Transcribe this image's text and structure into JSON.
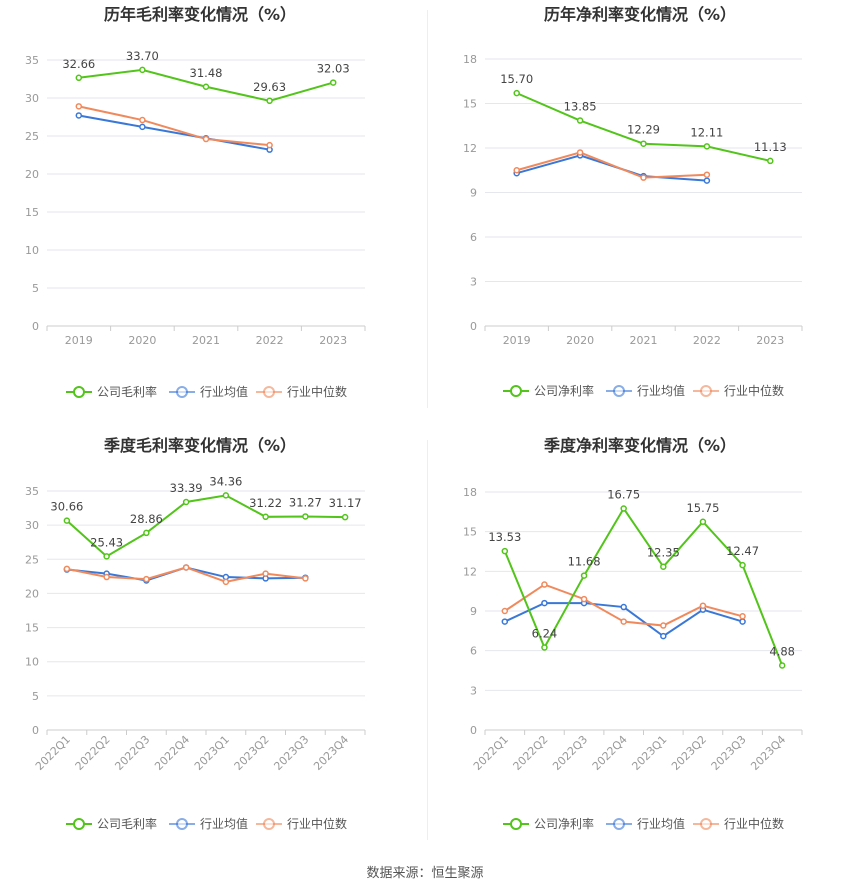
{
  "source": "数据来源：恒生聚源",
  "colors": {
    "company": "#52c41a",
    "avg": "#3a78d8",
    "median": "#f08a5d",
    "grid": "#e6e6ee",
    "axis": "#999999",
    "title": "#333333"
  },
  "chart_data": [
    {
      "type": "line",
      "title": "历年毛利率变化情况（%）",
      "categories": [
        "2019",
        "2020",
        "2021",
        "2022",
        "2023"
      ],
      "ylim": [
        0,
        35
      ],
      "yticks": [
        0,
        5,
        10,
        15,
        20,
        25,
        30,
        35
      ],
      "series": [
        {
          "name": "公司毛利率",
          "values": [
            32.66,
            33.7,
            31.48,
            29.63,
            32.03
          ],
          "labels": [
            "32.66",
            "33.70",
            "31.48",
            "29.63",
            "32.03"
          ]
        },
        {
          "name": "行业均值",
          "values": [
            27.7,
            26.2,
            24.7,
            23.2,
            null
          ]
        },
        {
          "name": "行业中位数",
          "values": [
            28.9,
            27.1,
            24.6,
            23.8,
            null
          ]
        }
      ]
    },
    {
      "type": "line",
      "title": "历年净利率变化情况（%）",
      "categories": [
        "2019",
        "2020",
        "2021",
        "2022",
        "2023"
      ],
      "ylim": [
        0,
        18
      ],
      "yticks": [
        0,
        3,
        6,
        9,
        12,
        15,
        18
      ],
      "series": [
        {
          "name": "公司净利率",
          "values": [
            15.7,
            13.85,
            12.29,
            12.11,
            11.13
          ],
          "labels": [
            "15.70",
            "13.85",
            "12.29",
            "12.11",
            "11.13"
          ]
        },
        {
          "name": "行业均值",
          "values": [
            10.3,
            11.5,
            10.1,
            9.8,
            null
          ]
        },
        {
          "name": "行业中位数",
          "values": [
            10.5,
            11.7,
            10.0,
            10.2,
            null
          ]
        }
      ]
    },
    {
      "type": "line",
      "title": "季度毛利率变化情况（%）",
      "categories": [
        "2022Q1",
        "2022Q2",
        "2022Q3",
        "2022Q4",
        "2023Q1",
        "2023Q2",
        "2023Q3",
        "2023Q4"
      ],
      "ylim": [
        0,
        35
      ],
      "yticks": [
        0,
        5,
        10,
        15,
        20,
        25,
        30,
        35
      ],
      "series": [
        {
          "name": "公司毛利率",
          "values": [
            30.66,
            25.43,
            28.86,
            33.39,
            34.36,
            31.22,
            31.27,
            31.17
          ],
          "labels": [
            "30.66",
            "25.43",
            "28.86",
            "33.39",
            "34.36",
            "31.22",
            "31.27",
            "31.17"
          ]
        },
        {
          "name": "行业均值",
          "values": [
            23.5,
            22.9,
            21.9,
            23.8,
            22.4,
            22.2,
            22.3,
            null
          ]
        },
        {
          "name": "行业中位数",
          "values": [
            23.6,
            22.4,
            22.1,
            23.8,
            21.7,
            22.9,
            22.2,
            null
          ]
        }
      ]
    },
    {
      "type": "line",
      "title": "季度净利率变化情况（%）",
      "categories": [
        "2022Q1",
        "2022Q2",
        "2022Q3",
        "2022Q4",
        "2023Q1",
        "2023Q2",
        "2023Q3",
        "2023Q4"
      ],
      "ylim": [
        0,
        18
      ],
      "yticks": [
        0,
        3,
        6,
        9,
        12,
        15,
        18
      ],
      "series": [
        {
          "name": "公司净利率",
          "values": [
            13.53,
            6.24,
            11.68,
            16.75,
            12.35,
            15.75,
            12.47,
            4.88
          ],
          "labels": [
            "13.53",
            "6.24",
            "11.68",
            "16.75",
            "12.35",
            "15.75",
            "12.47",
            "4.88"
          ]
        },
        {
          "name": "行业均值",
          "values": [
            8.2,
            9.6,
            9.6,
            9.3,
            7.1,
            9.1,
            8.2,
            null
          ]
        },
        {
          "name": "行业中位数",
          "values": [
            9.0,
            11.0,
            9.9,
            8.2,
            7.9,
            9.4,
            8.6,
            null
          ]
        }
      ]
    }
  ]
}
